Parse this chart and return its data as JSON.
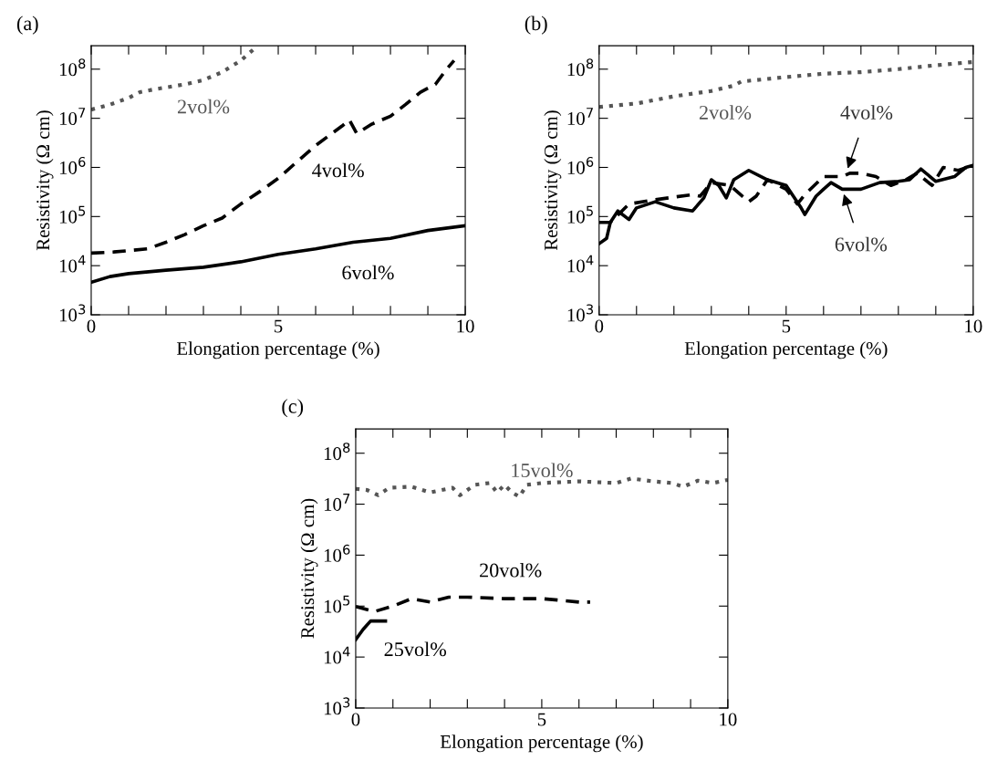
{
  "chart_data": [
    {
      "type": "line",
      "title": "(a)",
      "xlabel": "Elongation percentage (%)",
      "ylabel": "Resistivity (Ω cm)",
      "log": "y",
      "grid": false,
      "legend": false,
      "xlim": [
        0,
        10
      ],
      "xticks": [
        0,
        {
          "value": 1,
          "label": null
        },
        {
          "value": 2,
          "label": null
        },
        {
          "value": 3,
          "label": null
        },
        {
          "value": 4,
          "label": null
        },
        5,
        {
          "value": 6,
          "label": null
        },
        {
          "value": 7,
          "label": null
        },
        {
          "value": 8,
          "label": null
        },
        {
          "value": 9,
          "label": null
        },
        10
      ],
      "ylim": [
        1000,
        300000000
      ],
      "yticks": [
        {
          "value": 1000,
          "label": "10$^{3}$"
        },
        {
          "value": 10000,
          "label": "10$^{4}$"
        },
        {
          "value": 100000,
          "label": "10$^{5}$"
        },
        {
          "value": 1000000,
          "label": "10$^{6}$"
        },
        {
          "value": 10000000,
          "label": "10$^{7}$"
        },
        {
          "value": 100000000,
          "label": "10$^{8}$"
        }
      ],
      "series": [
        {
          "name": "2vol%",
          "color": "#555555",
          "line_style": "dotted",
          "x": [
            0,
            0.5,
            1,
            1.3,
            1.7,
            2.5,
            3,
            3.5,
            4,
            4.43
          ],
          "values": [
            15000000.0,
            19000000.0,
            26000000.0,
            34000000.0,
            39000000.0,
            49000000.0,
            60000000.0,
            87000000.0,
            150000000.0,
            290000000.0
          ]
        },
        {
          "name": "4vol%",
          "color": "#000000",
          "line_style": "dashed",
          "x": [
            0,
            0.6,
            1.5,
            2,
            2.5,
            3,
            3.5,
            4,
            4.5,
            5,
            5.5,
            6,
            6.7,
            6.9,
            7.1,
            7.5,
            8,
            8.4,
            8.8,
            9.2,
            9.5,
            9.7
          ],
          "values": [
            18000.0,
            19000.0,
            22000.0,
            30000.0,
            43000.0,
            65000.0,
            93000.0,
            180000.0,
            320000.0,
            600000.0,
            1300000.0,
            2800000.0,
            6900000.0,
            9300000.0,
            4900000.0,
            7600000.0,
            11000000.0,
            19000000.0,
            34000000.0,
            49000000.0,
            100000000.0,
            150000000.0
          ]
        },
        {
          "name": "6vol%",
          "color": "#000000",
          "line_style": "solid",
          "x": [
            0,
            0.5,
            1,
            2,
            3,
            4,
            5,
            6,
            7,
            8,
            9,
            10
          ],
          "values": [
            4600.0,
            6000.0,
            6900.0,
            8100.0,
            9300.0,
            12000.0,
            17000.0,
            22000.0,
            30000.0,
            36000.0,
            52000.0,
            65000.0
          ]
        }
      ]
    },
    {
      "type": "line",
      "title": "(b)",
      "xlabel": "Elongation percentage (%)",
      "ylabel": "Resistivity (Ω cm)",
      "log": "y",
      "grid": false,
      "legend": false,
      "xlim": [
        0,
        10
      ],
      "xticks": [
        0,
        {
          "value": 1,
          "label": null
        },
        {
          "value": 2,
          "label": null
        },
        {
          "value": 3,
          "label": null
        },
        {
          "value": 4,
          "label": null
        },
        5,
        {
          "value": 6,
          "label": null
        },
        {
          "value": 7,
          "label": null
        },
        {
          "value": 8,
          "label": null
        },
        {
          "value": 9,
          "label": null
        },
        10
      ],
      "ylim": [
        1000,
        300000000
      ],
      "yticks": [
        {
          "value": 1000,
          "label": "10$^{3}$"
        },
        {
          "value": 10000,
          "label": "10$^{4}$"
        },
        {
          "value": 100000,
          "label": "10$^{5}$"
        },
        {
          "value": 1000000,
          "label": "10$^{6}$"
        },
        {
          "value": 10000000,
          "label": "10$^{7}$"
        },
        {
          "value": 100000000,
          "label": "10$^{8}$"
        }
      ],
      "annotations": [
        {
          "text": "4vol%",
          "x": 6.6,
          "y": 760000.0
        },
        {
          "text": "6vol%",
          "x": 6.5,
          "y": 360000.0
        }
      ],
      "series": [
        {
          "name": "2vol%",
          "color": "#555555",
          "line_style": "dotted",
          "x": [
            0,
            1,
            2,
            3,
            3.6,
            3.8,
            5,
            6,
            7,
            8,
            9,
            10
          ],
          "values": [
            17000000.0,
            20000000.0,
            28000000.0,
            36000000.0,
            46000000.0,
            56000000.0,
            69000000.0,
            81000000.0,
            87000000.0,
            100000000.0,
            120000000.0,
            140000000.0
          ]
        },
        {
          "color": "#000000",
          "line_style": "dashed",
          "x": [
            0,
            0.3,
            0.8,
            1.5,
            2.5,
            2.7,
            3,
            3.5,
            4,
            4.2,
            4.5,
            5,
            5.3,
            5.5,
            6,
            6.5,
            6.7,
            7,
            7.4,
            7.8,
            8.2,
            8.5,
            8.9,
            9.2,
            9.6,
            10
          ],
          "values": [
            76000.0,
            76000.0,
            180000.0,
            220000.0,
            280000.0,
            260000.0,
            490000.0,
            430000.0,
            200000.0,
            260000.0,
            560000.0,
            360000.0,
            180000.0,
            280000.0,
            650000.0,
            650000.0,
            760000.0,
            760000.0,
            650000.0,
            430000.0,
            560000.0,
            760000.0,
            430000.0,
            1000000.0,
            870000.0,
            1100000.0
          ]
        },
        {
          "color": "#000000",
          "line_style": "solid",
          "x": [
            0,
            0.2,
            0.3,
            0.5,
            0.8,
            1,
            1.5,
            2,
            2.5,
            2.8,
            3,
            3.2,
            3.4,
            3.6,
            4,
            4.5,
            5,
            5.4,
            5.5,
            5.8,
            6,
            6.2,
            6.5,
            7,
            7.5,
            8,
            8.3,
            8.6,
            9,
            9.5,
            9.8,
            10
          ],
          "values": [
            28000.0,
            36000.0,
            76000.0,
            130000.0,
            87000.0,
            150000.0,
            200000.0,
            150000.0,
            130000.0,
            240000.0,
            560000.0,
            430000.0,
            240000.0,
            560000.0,
            870000.0,
            560000.0,
            430000.0,
            150000.0,
            110000.0,
            260000.0,
            360000.0,
            490000.0,
            360000.0,
            360000.0,
            490000.0,
            520000.0,
            560000.0,
            930000.0,
            520000.0,
            650000.0,
            1000000.0,
            1100000.0
          ]
        }
      ]
    },
    {
      "type": "line",
      "title": "(c)",
      "xlabel": "Elongation percentage (%)",
      "ylabel": "Resistivity (Ω cm)",
      "log": "y",
      "grid": false,
      "legend": false,
      "xlim": [
        0,
        10
      ],
      "xticks": [
        0,
        {
          "value": 1,
          "label": null
        },
        {
          "value": 2,
          "label": null
        },
        {
          "value": 3,
          "label": null
        },
        {
          "value": 4,
          "label": null
        },
        5,
        {
          "value": 6,
          "label": null
        },
        {
          "value": 7,
          "label": null
        },
        {
          "value": 8,
          "label": null
        },
        {
          "value": 9,
          "label": null
        },
        10
      ],
      "ylim": [
        1000,
        300000000
      ],
      "yticks": [
        {
          "value": 1000,
          "label": "10$^{3}$"
        },
        {
          "value": 10000,
          "label": "10$^{4}$"
        },
        {
          "value": 100000,
          "label": "10$^{5}$"
        },
        {
          "value": 1000000,
          "label": "10$^{6}$"
        },
        {
          "value": 10000000,
          "label": "10$^{7}$"
        },
        {
          "value": 100000000,
          "label": "10$^{8}$"
        }
      ],
      "series": [
        {
          "name": "15vol%",
          "color": "#555555",
          "line_style": "dotted",
          "x": [
            0,
            0.3,
            0.6,
            0.9,
            1.5,
            2,
            2.6,
            2.8,
            3.2,
            3.6,
            3.8,
            4,
            4.2,
            4.4,
            4.6,
            5,
            6,
            7,
            7.4,
            8,
            8.5,
            8.8,
            9.2,
            9.6,
            10
          ],
          "values": [
            20000000.0,
            19000000.0,
            15000000.0,
            21000000.0,
            22000000.0,
            17000000.0,
            21000000.0,
            15000000.0,
            24000000.0,
            26000000.0,
            17000000.0,
            24000000.0,
            17000000.0,
            14000000.0,
            24000000.0,
            26000000.0,
            28000000.0,
            26000000.0,
            32000000.0,
            28000000.0,
            26000000.0,
            22000000.0,
            29000000.0,
            26000000.0,
            30000000.0
          ]
        },
        {
          "name": "20vol%",
          "color": "#000000",
          "line_style": "dashed",
          "x": [
            0,
            0.5,
            1,
            1.5,
            2,
            2.5,
            3,
            4,
            5,
            5.5,
            6,
            6.3
          ],
          "values": [
            98000.0,
            78000.0,
            100000.0,
            140000.0,
            120000.0,
            150000.0,
            150000.0,
            140000.0,
            140000.0,
            130000.0,
            120000.0,
            120000.0
          ]
        },
        {
          "name": "25vol%",
          "color": "#000000",
          "line_style": "solid",
          "x": [
            0,
            0.2,
            0.4,
            0.8
          ],
          "values": [
            22000.0,
            35000.0,
            51000.0,
            51000.0
          ]
        }
      ]
    }
  ]
}
